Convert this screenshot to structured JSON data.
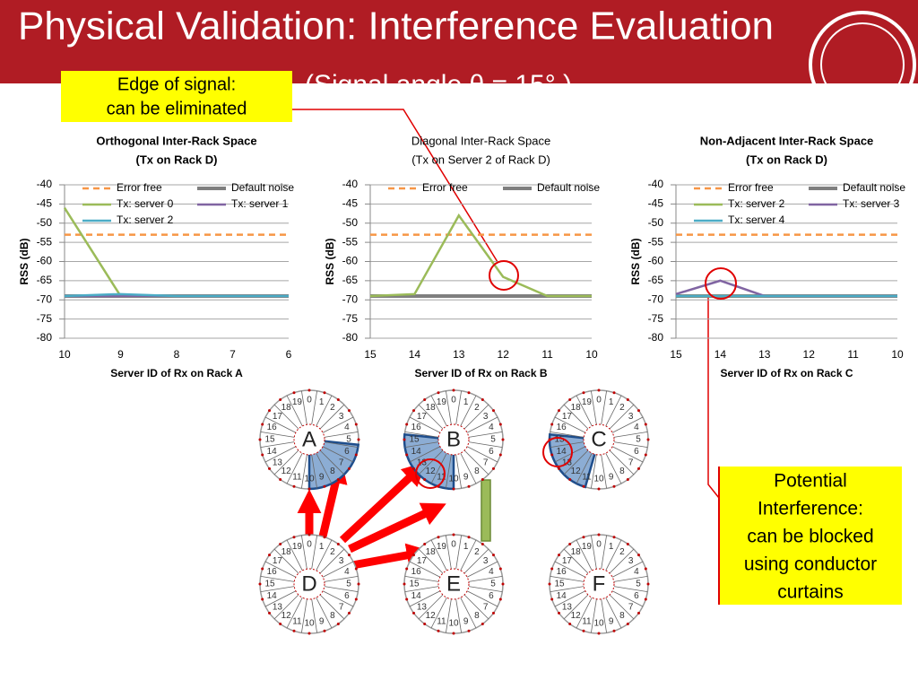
{
  "title": "Physical Validation: Interference Evaluation",
  "subtitle": "(Signal angle θ = 15° )",
  "callouts": [
    {
      "lines": [
        "Edge of signal:",
        "can be eliminated"
      ]
    },
    {
      "lines": [
        "Potential",
        "Interference:",
        "can be blocked",
        "using conductor",
        "curtains"
      ]
    }
  ],
  "chart_data": [
    {
      "type": "line",
      "title": "Orthogonal Inter-Rack Space",
      "subtitle": "(Tx on Rack D)",
      "x_label": "Server ID of Rx on Rack A",
      "y_label": "RSS (dB)",
      "categories": [
        "10",
        "9",
        "8",
        "7",
        "6"
      ],
      "ylim": [
        -80,
        -40
      ],
      "yticks": [
        -40,
        -45,
        -50,
        -55,
        -60,
        -65,
        -70,
        -75,
        -80
      ],
      "grid": true,
      "series": [
        {
          "name": "Error free",
          "color": "#f79646",
          "style": "dashed",
          "values": [
            -53,
            -53,
            -53,
            -53,
            -53
          ]
        },
        {
          "name": "Default noise",
          "color": "#7f7f7f",
          "style": "thick",
          "values": [
            -69,
            -69,
            -69,
            -69,
            -69
          ]
        },
        {
          "name": "Tx: server 0",
          "color": "#9bbb59",
          "style": "solid",
          "values": [
            -46,
            -69,
            -69,
            -69,
            -69
          ]
        },
        {
          "name": "Tx: server 1",
          "color": "#8064a2",
          "style": "solid",
          "values": [
            -69,
            -69,
            -69,
            -69,
            -69
          ]
        },
        {
          "name": "Tx: server 2",
          "color": "#4bacc6",
          "style": "solid",
          "values": [
            -69,
            -68.5,
            -69,
            -69,
            -69
          ]
        }
      ]
    },
    {
      "type": "line",
      "title": "Diagonal Inter-Rack Space",
      "subtitle": "(Tx on Server 2 of Rack D)",
      "x_label": "Server ID of Rx on Rack B",
      "y_label": "RSS (dB)",
      "categories": [
        "15",
        "14",
        "13",
        "12",
        "11",
        "10"
      ],
      "ylim": [
        -80,
        -40
      ],
      "yticks": [
        -40,
        -45,
        -50,
        -55,
        -60,
        -65,
        -70,
        -75,
        -80
      ],
      "grid": true,
      "series": [
        {
          "name": "Error free",
          "color": "#f79646",
          "style": "dashed",
          "values": [
            -53,
            -53,
            -53,
            -53,
            -53,
            -53
          ]
        },
        {
          "name": "Default noise",
          "color": "#7f7f7f",
          "style": "thick",
          "values": [
            -69,
            -69,
            -69,
            -69,
            -69,
            -69
          ]
        },
        {
          "color": "#9bbb59",
          "style": "solid",
          "values": [
            -69,
            -68.5,
            -48,
            -64,
            -69,
            -69
          ]
        }
      ]
    },
    {
      "type": "line",
      "title": "Non-Adjacent Inter-Rack Space",
      "subtitle": "(Tx on Rack D)",
      "x_label": "Server ID of Rx on Rack C",
      "y_label": "RSS (dB)",
      "categories": [
        "15",
        "14",
        "13",
        "12",
        "11",
        "10"
      ],
      "ylim": [
        -80,
        -40
      ],
      "yticks": [
        -40,
        -45,
        -50,
        -55,
        -60,
        -65,
        -70,
        -75,
        -80
      ],
      "grid": true,
      "series": [
        {
          "name": "Error free",
          "color": "#f79646",
          "style": "dashed",
          "values": [
            -53,
            -53,
            -53,
            -53,
            -53,
            -53
          ]
        },
        {
          "name": "Default noise",
          "color": "#7f7f7f",
          "style": "thick",
          "values": [
            -69,
            -69,
            -69,
            -69,
            -69,
            -69
          ]
        },
        {
          "name": "Tx: server  2",
          "color": "#9bbb59",
          "style": "solid",
          "values": [
            -69,
            -69,
            -69,
            -69,
            -69,
            -69
          ]
        },
        {
          "name": "Tx: server  3",
          "color": "#8064a2",
          "style": "solid",
          "values": [
            -68.5,
            -65,
            -69,
            -69,
            -69,
            -69
          ]
        },
        {
          "name": "Tx: server  4",
          "color": "#4bacc6",
          "style": "solid",
          "values": [
            -69,
            -69,
            -69,
            -69,
            -69,
            -69
          ]
        }
      ]
    }
  ],
  "diagram": {
    "racks": [
      "A",
      "B",
      "C",
      "D",
      "E",
      "F"
    ],
    "slot_labels": [
      "0",
      "1",
      "2",
      "3",
      "4",
      "5",
      "6",
      "7",
      "8",
      "9",
      "10",
      "11",
      "12",
      "13",
      "14",
      "15",
      "16",
      "17",
      "18",
      "19"
    ]
  }
}
